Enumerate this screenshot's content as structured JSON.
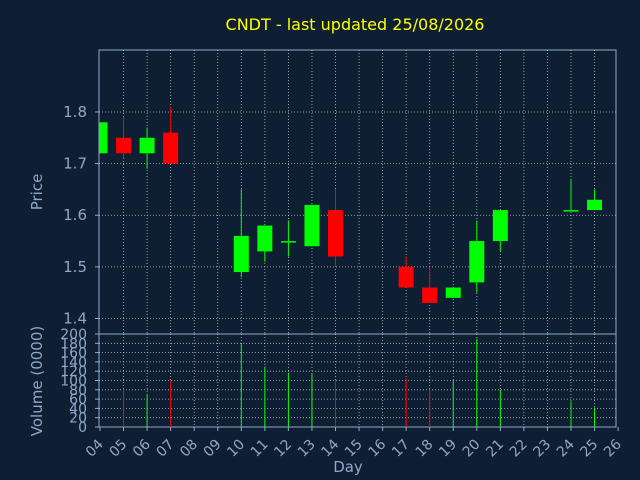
{
  "chart_data": {
    "type": "candlestick",
    "title": "CNDT - last updated 25/08/2026",
    "xlabel": "Day",
    "ylabel_price": "Price",
    "ylabel_volume": "Volume (0000)",
    "x_ticks": [
      "04",
      "05",
      "06",
      "07",
      "08",
      "09",
      "10",
      "11",
      "12",
      "13",
      "14",
      "15",
      "16",
      "17",
      "18",
      "19",
      "20",
      "21",
      "22",
      "23",
      "24",
      "25",
      "26"
    ],
    "price_ticks": [
      "1.4",
      "1.5",
      "1.6",
      "1.7",
      "1.8"
    ],
    "volume_ticks": [
      "0",
      "20",
      "40",
      "60",
      "80",
      "100",
      "120",
      "140",
      "160",
      "180",
      "200"
    ],
    "price_ylim": [
      1.37,
      1.92
    ],
    "volume_ylim": [
      0,
      200
    ],
    "grid": true,
    "colors": {
      "up": "#00ff00",
      "down": "#ff0000",
      "background": "#0f1f33",
      "title": "#ffff00",
      "text": "#8fa8c8",
      "grid": "#ffffff"
    },
    "candles": [
      {
        "day": "04",
        "open": 1.72,
        "high": 1.78,
        "low": 1.72,
        "close": 1.78,
        "volume": 0
      },
      {
        "day": "05",
        "open": 1.75,
        "high": 1.79,
        "low": 1.71,
        "close": 1.72,
        "volume": 80
      },
      {
        "day": "06",
        "open": 1.72,
        "high": 1.77,
        "low": 1.69,
        "close": 1.75,
        "volume": 70
      },
      {
        "day": "07",
        "open": 1.76,
        "high": 1.81,
        "low": 1.7,
        "close": 1.7,
        "volume": 100
      },
      {
        "day": "10",
        "open": 1.49,
        "high": 1.65,
        "low": 1.48,
        "close": 1.56,
        "volume": 180
      },
      {
        "day": "11",
        "open": 1.53,
        "high": 1.58,
        "low": 1.51,
        "close": 1.58,
        "volume": 130
      },
      {
        "day": "12",
        "open": 1.55,
        "high": 1.59,
        "low": 1.52,
        "close": 1.55,
        "volume": 115
      },
      {
        "day": "13",
        "open": 1.54,
        "high": 1.62,
        "low": 1.54,
        "close": 1.62,
        "volume": 115
      },
      {
        "day": "14",
        "open": 1.61,
        "high": 1.65,
        "low": 1.5,
        "close": 1.52,
        "volume": 100
      },
      {
        "day": "17",
        "open": 1.5,
        "high": 1.52,
        "low": 1.46,
        "close": 1.46,
        "volume": 105
      },
      {
        "day": "18",
        "open": 1.46,
        "high": 1.5,
        "low": 1.43,
        "close": 1.43,
        "volume": 80
      },
      {
        "day": "19",
        "open": 1.44,
        "high": 1.46,
        "low": 1.44,
        "close": 1.46,
        "volume": 100
      },
      {
        "day": "20",
        "open": 1.47,
        "high": 1.59,
        "low": 1.45,
        "close": 1.55,
        "volume": 190
      },
      {
        "day": "21",
        "open": 1.55,
        "high": 1.61,
        "low": 1.53,
        "close": 1.61,
        "volume": 80
      },
      {
        "day": "24",
        "open": 1.61,
        "high": 1.67,
        "low": 1.61,
        "close": 1.61,
        "volume": 55
      },
      {
        "day": "25",
        "open": 1.61,
        "high": 1.65,
        "low": 1.61,
        "close": 1.63,
        "volume": 42
      }
    ]
  }
}
